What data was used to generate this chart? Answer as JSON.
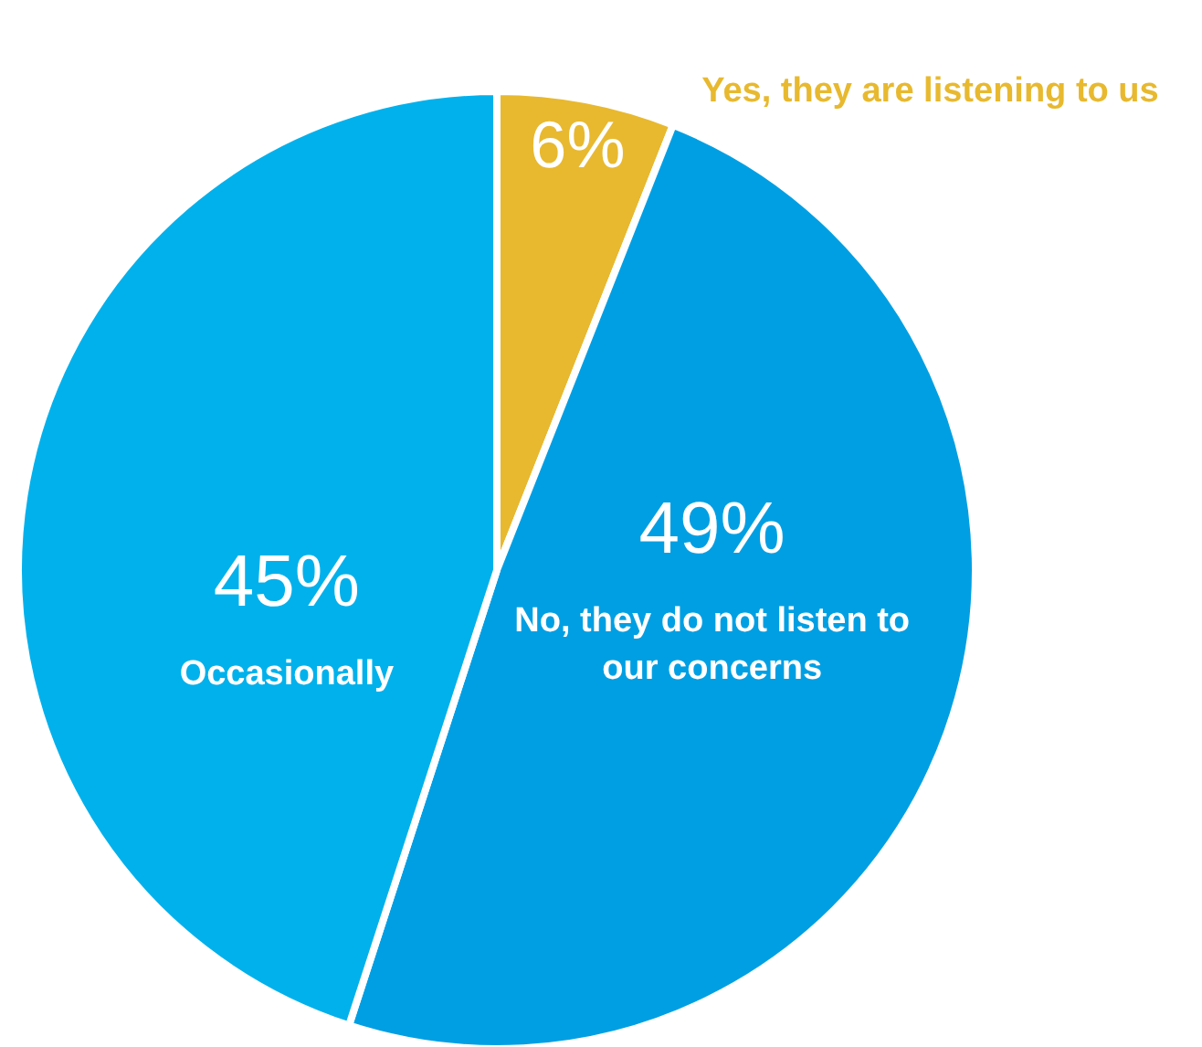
{
  "chart_data": {
    "type": "pie",
    "categories": [
      "Yes, they are listening to us",
      "No, they do not listen to our concerns",
      "Occasionally"
    ],
    "values": [
      6,
      49,
      45
    ],
    "colors": [
      "#e8b92f",
      "#009fe3",
      "#00b1ec"
    ],
    "value_labels": [
      "6%",
      "49%",
      "45%"
    ]
  }
}
